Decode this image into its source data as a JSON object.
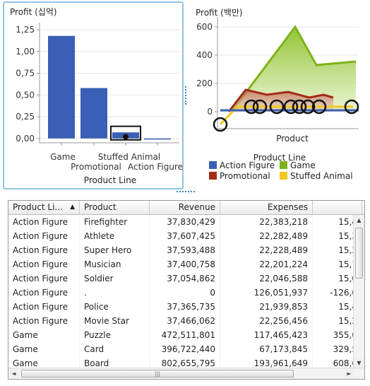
{
  "chart_left": {
    "title": "Profit (십억)",
    "xlabel": "Product Line",
    "y_ticks": [
      "1,25",
      "1,00",
      "0,75",
      "0,50",
      "0,25",
      "0,00"
    ],
    "x_ticks": [
      "Game",
      "Promotional",
      "Stuffed Animal",
      "Action Figure"
    ]
  },
  "chart_right": {
    "title": "Profit (백만)",
    "xlabel": "Product",
    "y_ticks": [
      "600",
      "400",
      "200",
      "0"
    ],
    "legend_title": "Product Line",
    "legend": [
      {
        "label": "Action Figure",
        "color": "#3a5fb4"
      },
      {
        "label": "Game",
        "color": "#7fb218"
      },
      {
        "label": "Promotional",
        "color": "#a52a18"
      },
      {
        "label": "Stuffed Animal",
        "color": "#f0c820"
      }
    ]
  },
  "chart_data": [
    {
      "type": "bar",
      "title": "Profit (십억)",
      "xlabel": "Product Line",
      "ylabel": "Profit (십억)",
      "categories": [
        "Game",
        "Promotional",
        "Stuffed Animal",
        "Action Figure"
      ],
      "values": [
        1.18,
        0.58,
        0.07,
        -0.01
      ],
      "ylim": [
        -0.05,
        1.3
      ],
      "bar_color": "#3a5fb4",
      "grid": true
    },
    {
      "type": "area",
      "title": "Profit (백만)",
      "xlabel": "Product",
      "ylabel": "Profit (백만)",
      "ylim": [
        -120,
        650
      ],
      "grid": true,
      "series": [
        {
          "name": "Game",
          "color": "#7fb218",
          "x": [
            0.1,
            0.55,
            0.7
          ],
          "values": [
            0,
            600,
            330
          ]
        },
        {
          "name": "Promotional",
          "color": "#a52a18",
          "x": [
            0.08,
            0.2,
            0.35,
            0.5,
            0.65,
            0.75
          ],
          "values": [
            0,
            155,
            120,
            140,
            100,
            120
          ]
        },
        {
          "name": "Stuffed Animal",
          "color": "#f0c820",
          "x": [
            0.02,
            0.14,
            0.4,
            0.6,
            0.82,
            0.96
          ],
          "values": [
            -90,
            35,
            35,
            35,
            35,
            35
          ]
        },
        {
          "name": "Action Figure",
          "color": "#3a5fb4",
          "x": [
            0.02,
            0.5,
            1.0
          ],
          "values": [
            10,
            10,
            10
          ]
        }
      ],
      "game_end_value": 355,
      "promotional_end_value": 100,
      "highlighted_points": [
        {
          "x": 0.02,
          "value": -90
        },
        {
          "x": 0.24,
          "value": 35
        },
        {
          "x": 0.3,
          "value": 35
        },
        {
          "x": 0.42,
          "value": 35
        },
        {
          "x": 0.52,
          "value": 35
        },
        {
          "x": 0.58,
          "value": 35
        },
        {
          "x": 0.64,
          "value": 35
        },
        {
          "x": 0.72,
          "value": 35
        },
        {
          "x": 0.95,
          "value": 35
        }
      ]
    }
  ],
  "table": {
    "columns": [
      {
        "label": "Product Li...",
        "sorted": "asc"
      },
      {
        "label": "Product"
      },
      {
        "label": "Revenue"
      },
      {
        "label": "Expenses"
      },
      {
        "label": ""
      }
    ],
    "rows": [
      [
        "Action Figure",
        "Firefighter",
        "37,830,429",
        "22,383,218",
        "15,4"
      ],
      [
        "Action Figure",
        "Athlete",
        "37,607,425",
        "22,282,489",
        "15,3"
      ],
      [
        "Action Figure",
        "Super Hero",
        "37,593,488",
        "22,228,489",
        "15,3"
      ],
      [
        "Action Figure",
        "Musician",
        "37,400,758",
        "22,201,224",
        "15,1"
      ],
      [
        "Action Figure",
        "Soldier",
        "37,054,862",
        "22,046,588",
        "15,0"
      ],
      [
        "Action Figure",
        ".",
        "0",
        "126,051,937",
        "-126,0"
      ],
      [
        "Action Figure",
        "Police",
        "37,365,735",
        "21,939,853",
        "15,4"
      ],
      [
        "Action Figure",
        "Movie Star",
        "37,466,062",
        "22,256,456",
        "15,2"
      ],
      [
        "Game",
        "Puzzle",
        "472,511,801",
        "117,465,423",
        "355,0"
      ],
      [
        "Game",
        "Card",
        "396,722,440",
        "67,173,845",
        "329,5"
      ],
      [
        "Game",
        "Board",
        "802,655,795",
        "193,961,649",
        "608,6"
      ]
    ],
    "sort_arrow": "▲",
    "scroll_left": "◄",
    "scroll_right": "►",
    "scroll_up": "▲",
    "scroll_down": "▼",
    "hthumb_grip": "|||"
  }
}
